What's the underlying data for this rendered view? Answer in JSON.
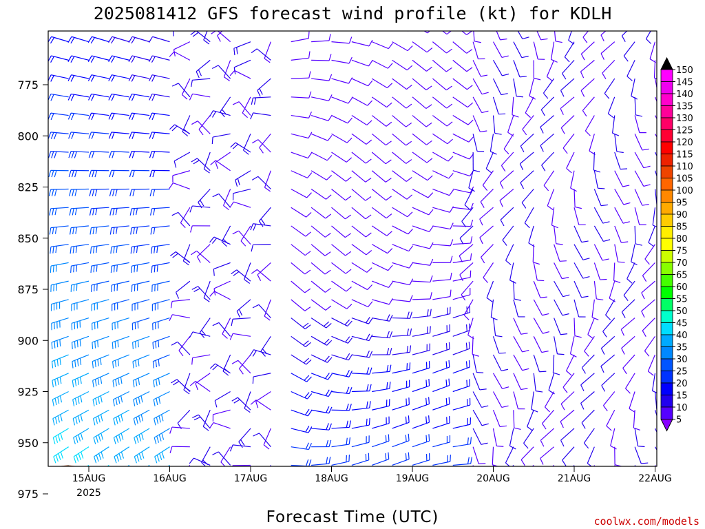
{
  "chart_data": {
    "type": "wind-barb profile",
    "title": "2025081412 GFS forecast wind profile (kt) for KDLH",
    "xlabel": "Forecast Time (UTC)",
    "ylabel": "",
    "y_axis": {
      "ticks": [
        775,
        800,
        825,
        850,
        875,
        900,
        925,
        950,
        975
      ],
      "range": [
        975,
        744
      ],
      "units": "hPa"
    },
    "x_axis": {
      "ticks": [
        "15AUG",
        "16AUG",
        "17AUG",
        "18AUG",
        "19AUG",
        "20AUG",
        "21AUG",
        "22AUG"
      ],
      "year_label": "2025",
      "range_hours_from_15aug00": [
        -12,
        168
      ]
    },
    "colorbar": {
      "labels": [
        150,
        145,
        140,
        135,
        130,
        125,
        120,
        115,
        110,
        105,
        100,
        95,
        90,
        85,
        80,
        75,
        70,
        65,
        60,
        55,
        50,
        45,
        40,
        35,
        30,
        25,
        20,
        15,
        10,
        5
      ],
      "colors": [
        "#ff00ff",
        "#ee00ee",
        "#ff00cc",
        "#ff0099",
        "#ff0066",
        "#ff0033",
        "#ff0000",
        "#ee2200",
        "#ee4400",
        "#ff6600",
        "#ff8800",
        "#ffaa00",
        "#ffcc00",
        "#ffee00",
        "#ffff00",
        "#ccff00",
        "#88ff00",
        "#44ff00",
        "#00ff00",
        "#00ff66",
        "#00ffcc",
        "#00ddff",
        "#00aaff",
        "#0088ff",
        "#0055ff",
        "#0033ff",
        "#0000ff",
        "#2200ee",
        "#5500ff",
        "#8800ff"
      ]
    },
    "surface_color": "#a0522d",
    "surface_pressure_approx_hpa": 966
  },
  "credit": "coolwx.com/models"
}
